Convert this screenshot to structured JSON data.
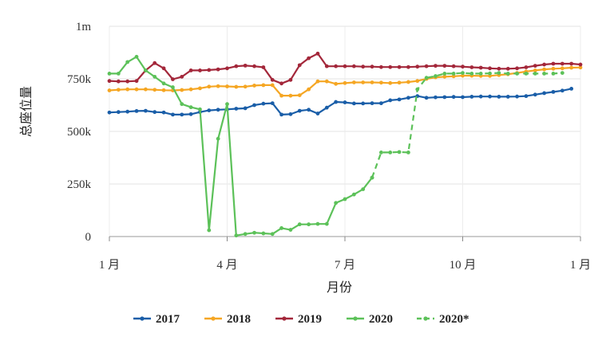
{
  "chart_data": {
    "type": "line",
    "title": "",
    "xlabel": "月份",
    "ylabel": "总座位量",
    "x_ticks": [
      "1 月",
      "4 月",
      "7 月",
      "10 月",
      "1 月"
    ],
    "y_ticks": [
      "0",
      "250k",
      "500k",
      "750k",
      "1m"
    ],
    "ylim": [
      0,
      1000000
    ],
    "xlim": [
      0,
      52
    ],
    "grid": true,
    "legend_position": "bottom",
    "series": [
      {
        "name": "2017",
        "color": "#1a5ea8",
        "dashed": false,
        "points": [
          [
            0,
            590000
          ],
          [
            1,
            592000
          ],
          [
            2,
            594000
          ],
          [
            3,
            597000
          ],
          [
            4,
            598000
          ],
          [
            5,
            592000
          ],
          [
            6,
            590000
          ],
          [
            7,
            580000
          ],
          [
            8,
            580000
          ],
          [
            9,
            582000
          ],
          [
            10,
            592000
          ],
          [
            11,
            600000
          ],
          [
            12,
            603000
          ],
          [
            13,
            605000
          ],
          [
            14,
            608000
          ],
          [
            15,
            610000
          ],
          [
            16,
            625000
          ],
          [
            17,
            632000
          ],
          [
            18,
            634000
          ],
          [
            19,
            580000
          ],
          [
            20,
            582000
          ],
          [
            21,
            598000
          ],
          [
            22,
            603000
          ],
          [
            23,
            585000
          ],
          [
            24,
            613000
          ],
          [
            25,
            640000
          ],
          [
            26,
            638000
          ],
          [
            27,
            633000
          ],
          [
            28,
            633000
          ],
          [
            29,
            634000
          ],
          [
            30,
            634000
          ],
          [
            31,
            648000
          ],
          [
            32,
            652000
          ],
          [
            33,
            660000
          ],
          [
            34,
            668000
          ],
          [
            35,
            660000
          ],
          [
            36,
            662000
          ],
          [
            37,
            663000
          ],
          [
            38,
            664000
          ],
          [
            39,
            663000
          ],
          [
            40,
            665000
          ],
          [
            41,
            666000
          ],
          [
            42,
            666000
          ],
          [
            43,
            665000
          ],
          [
            44,
            665000
          ],
          [
            45,
            666000
          ],
          [
            46,
            668000
          ],
          [
            47,
            675000
          ],
          [
            48,
            682000
          ],
          [
            49,
            688000
          ],
          [
            50,
            694000
          ],
          [
            51,
            703000
          ]
        ]
      },
      {
        "name": "2018",
        "color": "#f5a623",
        "dashed": false,
        "points": [
          [
            0,
            695000
          ],
          [
            1,
            698000
          ],
          [
            2,
            700000
          ],
          [
            3,
            700000
          ],
          [
            4,
            700000
          ],
          [
            5,
            698000
          ],
          [
            6,
            696000
          ],
          [
            7,
            695000
          ],
          [
            8,
            697000
          ],
          [
            9,
            700000
          ],
          [
            10,
            705000
          ],
          [
            11,
            713000
          ],
          [
            12,
            715000
          ],
          [
            13,
            714000
          ],
          [
            14,
            712000
          ],
          [
            15,
            713000
          ],
          [
            16,
            718000
          ],
          [
            17,
            720000
          ],
          [
            18,
            720000
          ],
          [
            19,
            670000
          ],
          [
            20,
            670000
          ],
          [
            21,
            672000
          ],
          [
            22,
            700000
          ],
          [
            23,
            738000
          ],
          [
            24,
            738000
          ],
          [
            25,
            726000
          ],
          [
            26,
            730000
          ],
          [
            27,
            733000
          ],
          [
            28,
            733000
          ],
          [
            29,
            733000
          ],
          [
            30,
            732000
          ],
          [
            31,
            730000
          ],
          [
            32,
            732000
          ],
          [
            33,
            735000
          ],
          [
            34,
            740000
          ],
          [
            35,
            750000
          ],
          [
            36,
            757000
          ],
          [
            37,
            760000
          ],
          [
            38,
            762000
          ],
          [
            39,
            765000
          ],
          [
            40,
            765000
          ],
          [
            41,
            764000
          ],
          [
            42,
            764000
          ],
          [
            43,
            768000
          ],
          [
            44,
            772000
          ],
          [
            45,
            778000
          ],
          [
            46,
            785000
          ],
          [
            47,
            790000
          ],
          [
            48,
            795000
          ],
          [
            49,
            798000
          ],
          [
            50,
            800000
          ],
          [
            51,
            803000
          ],
          [
            52,
            804000
          ]
        ]
      },
      {
        "name": "2019",
        "color": "#a3273a",
        "dashed": false,
        "points": [
          [
            0,
            740000
          ],
          [
            1,
            738000
          ],
          [
            2,
            738000
          ],
          [
            3,
            740000
          ],
          [
            4,
            790000
          ],
          [
            5,
            825000
          ],
          [
            6,
            800000
          ],
          [
            7,
            748000
          ],
          [
            8,
            760000
          ],
          [
            9,
            790000
          ],
          [
            10,
            790000
          ],
          [
            11,
            792000
          ],
          [
            12,
            795000
          ],
          [
            13,
            800000
          ],
          [
            14,
            810000
          ],
          [
            15,
            813000
          ],
          [
            16,
            810000
          ],
          [
            17,
            805000
          ],
          [
            18,
            745000
          ],
          [
            19,
            728000
          ],
          [
            20,
            745000
          ],
          [
            21,
            815000
          ],
          [
            22,
            848000
          ],
          [
            23,
            870000
          ],
          [
            24,
            810000
          ],
          [
            25,
            810000
          ],
          [
            26,
            810000
          ],
          [
            27,
            810000
          ],
          [
            28,
            808000
          ],
          [
            29,
            808000
          ],
          [
            30,
            806000
          ],
          [
            31,
            806000
          ],
          [
            32,
            806000
          ],
          [
            33,
            806000
          ],
          [
            34,
            808000
          ],
          [
            35,
            810000
          ],
          [
            36,
            812000
          ],
          [
            37,
            812000
          ],
          [
            38,
            810000
          ],
          [
            39,
            808000
          ],
          [
            40,
            805000
          ],
          [
            41,
            803000
          ],
          [
            42,
            800000
          ],
          [
            43,
            798000
          ],
          [
            44,
            798000
          ],
          [
            45,
            800000
          ],
          [
            46,
            805000
          ],
          [
            47,
            812000
          ],
          [
            48,
            818000
          ],
          [
            49,
            822000
          ],
          [
            50,
            822000
          ],
          [
            51,
            822000
          ],
          [
            52,
            818000
          ]
        ]
      },
      {
        "name": "2020",
        "color": "#5cc159",
        "dashed": false,
        "points": [
          [
            0,
            775000
          ],
          [
            1,
            775000
          ],
          [
            2,
            830000
          ],
          [
            3,
            855000
          ],
          [
            4,
            790000
          ],
          [
            5,
            760000
          ],
          [
            6,
            728000
          ],
          [
            7,
            710000
          ],
          [
            8,
            630000
          ],
          [
            9,
            615000
          ],
          [
            10,
            605000
          ],
          [
            11,
            30000
          ],
          [
            12,
            465000
          ],
          [
            13,
            630000
          ],
          [
            14,
            5000
          ],
          [
            15,
            12000
          ],
          [
            16,
            18000
          ],
          [
            17,
            15000
          ],
          [
            18,
            12000
          ],
          [
            19,
            40000
          ],
          [
            20,
            32000
          ],
          [
            21,
            58000
          ],
          [
            22,
            58000
          ],
          [
            23,
            60000
          ],
          [
            24,
            60000
          ],
          [
            25,
            160000
          ],
          [
            26,
            178000
          ],
          [
            27,
            200000
          ],
          [
            28,
            225000
          ],
          [
            29,
            280000
          ]
        ]
      },
      {
        "name": "2020*",
        "color": "#5cc159",
        "dashed": true,
        "points": [
          [
            29,
            280000
          ],
          [
            30,
            400000
          ],
          [
            31,
            400000
          ],
          [
            32,
            402000
          ],
          [
            33,
            400000
          ],
          [
            34,
            700000
          ],
          [
            35,
            755000
          ],
          [
            36,
            763000
          ],
          [
            37,
            775000
          ],
          [
            38,
            775000
          ],
          [
            39,
            778000
          ],
          [
            40,
            775000
          ],
          [
            41,
            775000
          ],
          [
            42,
            776000
          ],
          [
            43,
            778000
          ],
          [
            44,
            775000
          ],
          [
            45,
            775000
          ],
          [
            46,
            775000
          ],
          [
            47,
            775000
          ],
          [
            48,
            775000
          ],
          [
            49,
            775000
          ],
          [
            50,
            778000
          ]
        ]
      }
    ]
  }
}
